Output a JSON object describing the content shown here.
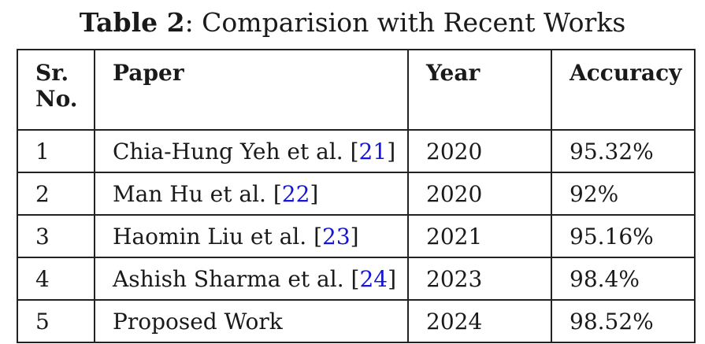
{
  "caption": {
    "label": "Table 2",
    "separator": ": ",
    "title": "Comparision with Recent Works"
  },
  "table": {
    "headers": {
      "sr_line1": "Sr.",
      "sr_line2": "No.",
      "paper": "Paper",
      "year": "Year",
      "accuracy": "Accuracy"
    },
    "rows": [
      {
        "sr": "1",
        "paper": "Chia-Hung Yeh et al. ",
        "ref": "21",
        "year": "2020",
        "accuracy": "95.32%"
      },
      {
        "sr": "2",
        "paper": "Man Hu et al. ",
        "ref": "22",
        "year": "2020",
        "accuracy": "92%"
      },
      {
        "sr": "3",
        "paper": "Haomin Liu et al. ",
        "ref": "23",
        "year": "2021",
        "accuracy": "95.16%"
      },
      {
        "sr": "4",
        "paper": "Ashish Sharma et al. ",
        "ref": "24",
        "year": "2023",
        "accuracy": "98.4%"
      },
      {
        "sr": "5",
        "paper": "Proposed Work",
        "ref": null,
        "year": "2024",
        "accuracy": "98.52%"
      }
    ]
  },
  "colors": {
    "citation_link": "#1515d6",
    "text": "#1a1a1a",
    "border": "#222222"
  }
}
